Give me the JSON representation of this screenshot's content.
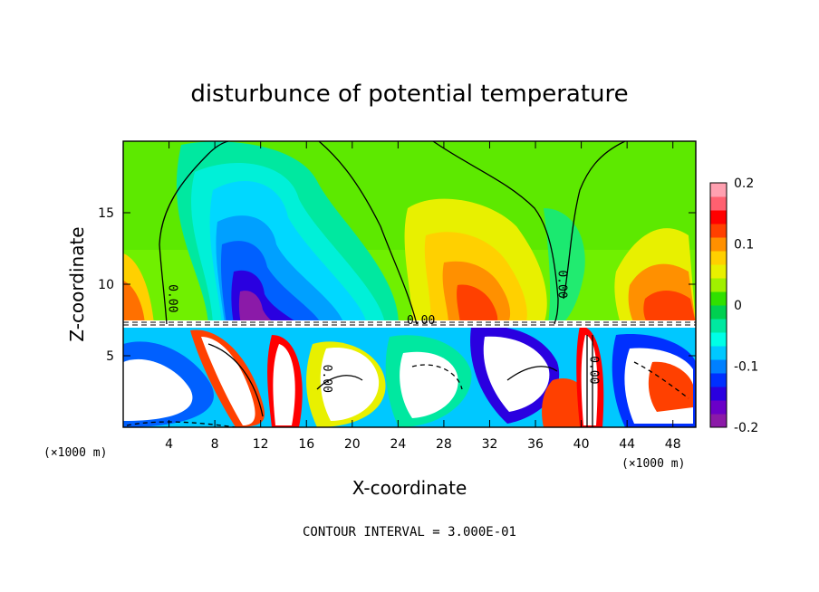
{
  "chart_data": {
    "type": "heatmap",
    "title": "disturbunce of potential temperature",
    "xlabel": "X-coordinate",
    "ylabel": "Z-coordinate",
    "x_unit": "(×1000 m)",
    "z_unit": "(×1000 m)",
    "xlim": [
      0,
      50
    ],
    "ylim": [
      0,
      20
    ],
    "x_ticks": [
      4,
      8,
      12,
      16,
      20,
      24,
      28,
      32,
      36,
      40,
      44,
      48
    ],
    "y_ticks": [
      5,
      10,
      15
    ],
    "colorbar": {
      "range": [
        -0.2,
        0.2
      ],
      "ticks": [
        0.2,
        0.1,
        0,
        -0.1,
        -0.2
      ],
      "tick_labels": [
        "0.2",
        "0.1",
        "0",
        "-0.1",
        "-0.2"
      ],
      "colors": [
        "#8b1aa8",
        "#6a00c8",
        "#2a00e0",
        "#0030ff",
        "#0080ff",
        "#00c8ff",
        "#00ffe6",
        "#00e8a0",
        "#00d050",
        "#30e000",
        "#a0f000",
        "#e8f000",
        "#ffd000",
        "#ff9000",
        "#ff4000",
        "#ff0000",
        "#ff6070",
        "#ffa0b0"
      ]
    },
    "contour_labels": [
      {
        "text": "0.00",
        "x": 4,
        "z": 9.0
      },
      {
        "text": "0.00",
        "x": 26,
        "z": 7.2
      },
      {
        "text": "0.00",
        "x": 38,
        "z": 10.0
      },
      {
        "text": "0.00",
        "x": 17.5,
        "z": 3.4
      },
      {
        "text": "0.00",
        "x": 40.8,
        "z": 4.0
      }
    ],
    "annotation": "CONTOUR INTERVAL = 3.000E-01"
  }
}
